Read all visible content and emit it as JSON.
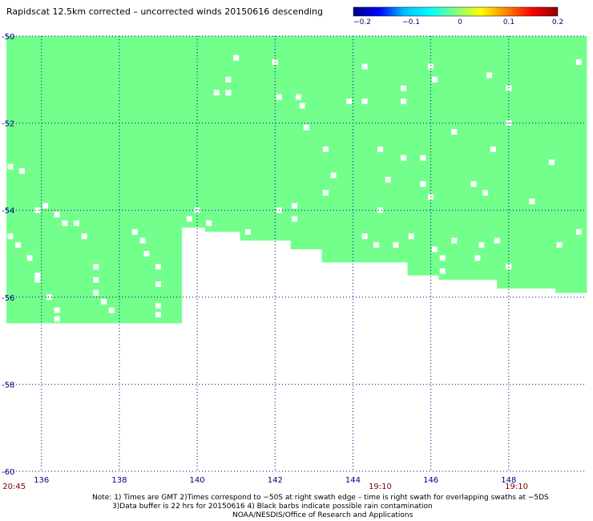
{
  "title": "Rapidscat 12.5km corrected – uncorrected winds 20150616 descending",
  "colorbar": {
    "ticks": [
      "−0.2",
      "−0.1",
      "0",
      "0.1",
      "0.2"
    ],
    "stops": [
      "#00008b",
      "#0000ff",
      "#00bfff",
      "#00ffff",
      "#7fff7f",
      "#ffff00",
      "#ff8000",
      "#ff0000",
      "#8b0000"
    ]
  },
  "colors": {
    "swath_fill": "#73ff8c",
    "axis_text": "#000080",
    "time_text": "#800000",
    "grid": "#000080"
  },
  "chart_data": {
    "type": "heatmap",
    "title": "Rapidscat 12.5km corrected – uncorrected winds 20150616 descending",
    "xlim": [
      135.1,
      150.0
    ],
    "ylim": [
      -60,
      -50
    ],
    "x_ticks": [
      "136",
      "138",
      "140",
      "142",
      "144",
      "146",
      "148"
    ],
    "y_ticks": [
      "-50",
      "-52",
      "-54",
      "-56",
      "-58",
      "-60"
    ],
    "time_labels": [
      {
        "lon": 135.3,
        "text": "20:45"
      },
      {
        "lon": 144.7,
        "text": "19:10"
      },
      {
        "lon": 148.2,
        "text": "19:10"
      }
    ],
    "grid": true,
    "value_in_swath": 0,
    "swath_bottom_lat": [
      {
        "lon_from": 135.1,
        "lon_to": 139.6,
        "lat": -56.6
      },
      {
        "lon_from": 139.6,
        "lon_to": 140.2,
        "lat": -54.4
      },
      {
        "lon_from": 140.2,
        "lon_to": 141.1,
        "lat": -54.5
      },
      {
        "lon_from": 141.1,
        "lon_to": 142.4,
        "lat": -54.7
      },
      {
        "lon_from": 142.4,
        "lon_to": 143.2,
        "lat": -54.9
      },
      {
        "lon_from": 143.2,
        "lon_to": 145.4,
        "lat": -55.2
      },
      {
        "lon_from": 145.4,
        "lon_to": 146.2,
        "lat": -55.5
      },
      {
        "lon_from": 146.2,
        "lon_to": 147.7,
        "lat": -55.6
      },
      {
        "lon_from": 147.7,
        "lon_to": 149.2,
        "lat": -55.8
      },
      {
        "lon_from": 149.2,
        "lon_to": 150.0,
        "lat": -55.9
      }
    ],
    "missing_cells": [
      [
        135.2,
        -53.0
      ],
      [
        135.5,
        -53.1
      ],
      [
        135.9,
        -54.0
      ],
      [
        136.1,
        -53.9
      ],
      [
        136.4,
        -54.1
      ],
      [
        136.6,
        -54.3
      ],
      [
        135.2,
        -54.6
      ],
      [
        135.4,
        -54.8
      ],
      [
        135.7,
        -55.1
      ],
      [
        135.9,
        -55.5
      ],
      [
        135.9,
        -55.6
      ],
      [
        136.2,
        -56.0
      ],
      [
        136.4,
        -56.3
      ],
      [
        136.4,
        -56.5
      ],
      [
        136.9,
        -54.3
      ],
      [
        137.1,
        -54.6
      ],
      [
        137.4,
        -55.3
      ],
      [
        137.4,
        -55.6
      ],
      [
        137.4,
        -55.9
      ],
      [
        137.6,
        -56.1
      ],
      [
        137.8,
        -56.3
      ],
      [
        138.4,
        -54.5
      ],
      [
        138.6,
        -54.7
      ],
      [
        138.7,
        -55.0
      ],
      [
        139.0,
        -55.3
      ],
      [
        139.0,
        -55.7
      ],
      [
        139.0,
        -56.2
      ],
      [
        139.0,
        -56.4
      ],
      [
        139.8,
        -54.2
      ],
      [
        140.0,
        -54.0
      ],
      [
        140.3,
        -54.3
      ],
      [
        140.5,
        -51.3
      ],
      [
        140.8,
        -51.3
      ],
      [
        140.8,
        -51.0
      ],
      [
        141.0,
        -50.5
      ],
      [
        141.3,
        -54.5
      ],
      [
        142.1,
        -54.0
      ],
      [
        142.1,
        -51.4
      ],
      [
        142.0,
        -50.6
      ],
      [
        142.6,
        -51.4
      ],
      [
        142.7,
        -51.6
      ],
      [
        142.8,
        -52.1
      ],
      [
        142.5,
        -53.9
      ],
      [
        142.5,
        -54.2
      ],
      [
        143.3,
        -52.6
      ],
      [
        143.5,
        -53.2
      ],
      [
        143.3,
        -53.6
      ],
      [
        143.9,
        -51.5
      ],
      [
        144.3,
        -50.7
      ],
      [
        144.3,
        -51.5
      ],
      [
        144.7,
        -52.6
      ],
      [
        144.9,
        -53.3
      ],
      [
        144.7,
        -54.0
      ],
      [
        144.3,
        -54.6
      ],
      [
        144.6,
        -54.8
      ],
      [
        145.1,
        -54.8
      ],
      [
        145.3,
        -51.5
      ],
      [
        145.3,
        -51.2
      ],
      [
        145.3,
        -52.8
      ],
      [
        145.8,
        -52.8
      ],
      [
        145.8,
        -53.4
      ],
      [
        146.1,
        -51.0
      ],
      [
        146.0,
        -50.7
      ],
      [
        146.0,
        -53.7
      ],
      [
        145.5,
        -54.6
      ],
      [
        146.1,
        -54.9
      ],
      [
        146.6,
        -52.2
      ],
      [
        146.6,
        -54.7
      ],
      [
        147.1,
        -53.4
      ],
      [
        147.4,
        -53.6
      ],
      [
        147.7,
        -54.7
      ],
      [
        147.5,
        -50.9
      ],
      [
        147.6,
        -52.6
      ],
      [
        148.0,
        -51.2
      ],
      [
        148.0,
        -52.0
      ],
      [
        148.0,
        -55.3
      ],
      [
        148.6,
        -53.8
      ],
      [
        149.1,
        -52.9
      ],
      [
        149.3,
        -54.8
      ],
      [
        149.8,
        -50.6
      ],
      [
        149.8,
        -54.5
      ],
      [
        146.3,
        -55.1
      ],
      [
        146.3,
        -55.4
      ],
      [
        147.3,
        -54.8
      ],
      [
        147.2,
        -55.1
      ]
    ]
  },
  "footer": {
    "note_line1": "Note: 1) Times are GMT 2)Times correspond to −50S at right swath edge – time is right swath for overlapping swaths at −5DS",
    "note_line2": "3)Data buffer is 22 hrs for 20150616 4) Black barbs indicate possible rain contamination",
    "note_line3": "NOAA/NESDIS/Office of Research and Applications"
  }
}
